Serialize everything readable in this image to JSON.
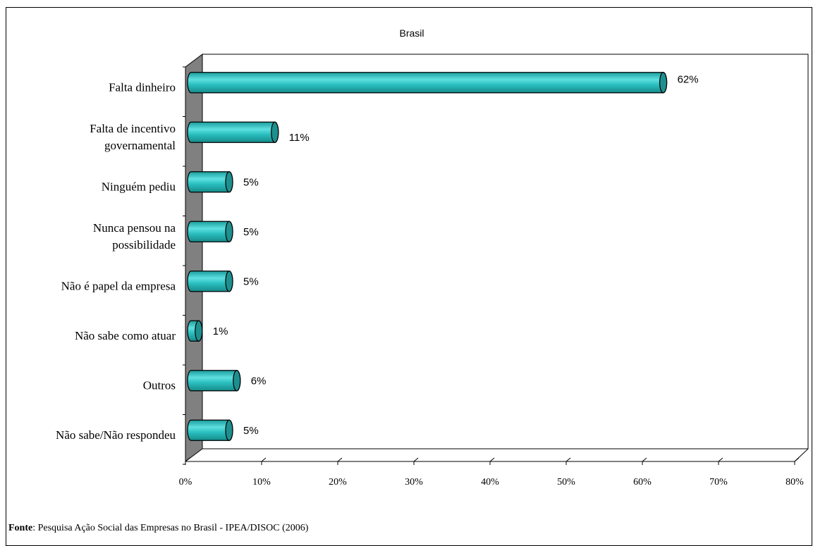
{
  "chart_data": {
    "type": "bar",
    "orientation": "horizontal",
    "title": "Brasil",
    "categories": [
      [
        "Falta dinheiro"
      ],
      [
        "Falta de incentivo",
        "governamental"
      ],
      [
        "Ninguém pediu"
      ],
      [
        "Nunca pensou na",
        "possibilidade"
      ],
      [
        "Não é papel da empresa"
      ],
      [
        "Não sabe como atuar"
      ],
      [
        "Outros"
      ],
      [
        "Não sabe/Não respondeu"
      ]
    ],
    "values": [
      62,
      11,
      5,
      5,
      5,
      1,
      6,
      5
    ],
    "data_labels": [
      "62%",
      "11%",
      "5%",
      "5%",
      "5%",
      "1%",
      "6%",
      "5%"
    ],
    "xlim": [
      0,
      80
    ],
    "x_ticks": [
      "0%",
      "10%",
      "20%",
      "30%",
      "40%",
      "50%",
      "60%",
      "70%",
      "80%"
    ],
    "grid": false,
    "bar_color": "#2ABFBF",
    "wall_color": "#808080"
  },
  "footer": {
    "label": "Fonte",
    "text": ": Pesquisa Ação Social das Empresas no Brasil - IPEA/DISOC (2006)"
  }
}
